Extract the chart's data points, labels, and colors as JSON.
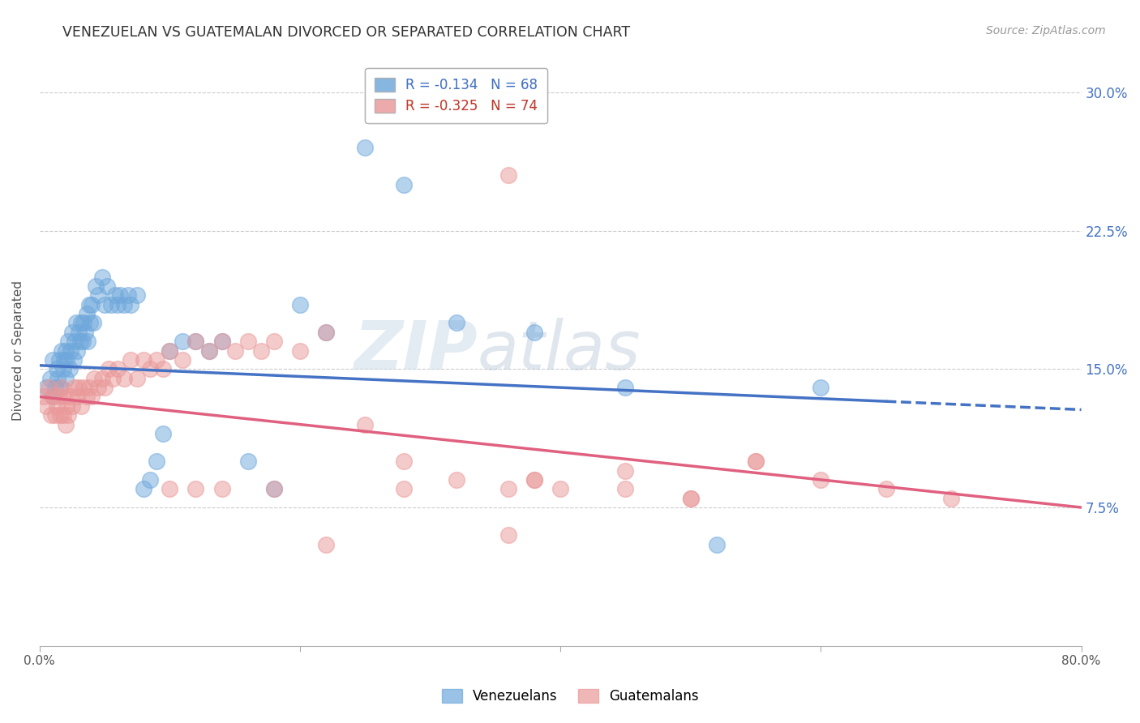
{
  "title": "VENEZUELAN VS GUATEMALAN DIVORCED OR SEPARATED CORRELATION CHART",
  "source": "Source: ZipAtlas.com",
  "ylabel": "Divorced or Separated",
  "xlabel_ticks": [
    "0.0%",
    "",
    "",
    "",
    "80.0%"
  ],
  "xlabel_vals": [
    0.0,
    0.2,
    0.4,
    0.6,
    0.8
  ],
  "ylabel_ticks": [
    "7.5%",
    "15.0%",
    "22.5%",
    "30.0%"
  ],
  "ylabel_vals": [
    0.075,
    0.15,
    0.225,
    0.3
  ],
  "xlim": [
    0.0,
    0.8
  ],
  "ylim": [
    0.0,
    0.32
  ],
  "venezuelan_color": "#6fa8dc",
  "guatemalan_color": "#ea9999",
  "ven_line_color": "#4472c4",
  "gua_line_color": "#e06080",
  "ven_line_solid_end": 0.65,
  "ven_line_x0": 0.0,
  "ven_line_x1": 0.8,
  "ven_line_y0": 0.152,
  "ven_line_y1": 0.128,
  "gua_line_x0": 0.0,
  "gua_line_x1": 0.8,
  "gua_line_y0": 0.135,
  "gua_line_y1": 0.075,
  "venezuelan_scatter_x": [
    0.005,
    0.008,
    0.01,
    0.01,
    0.012,
    0.013,
    0.014,
    0.015,
    0.016,
    0.017,
    0.018,
    0.019,
    0.02,
    0.02,
    0.021,
    0.022,
    0.023,
    0.024,
    0.025,
    0.026,
    0.027,
    0.028,
    0.029,
    0.03,
    0.031,
    0.032,
    0.033,
    0.034,
    0.035,
    0.036,
    0.037,
    0.038,
    0.039,
    0.04,
    0.041,
    0.043,
    0.045,
    0.048,
    0.05,
    0.052,
    0.055,
    0.058,
    0.06,
    0.062,
    0.065,
    0.068,
    0.07,
    0.075,
    0.08,
    0.085,
    0.09,
    0.095,
    0.1,
    0.11,
    0.12,
    0.13,
    0.14,
    0.16,
    0.18,
    0.2,
    0.22,
    0.25,
    0.28,
    0.32,
    0.38,
    0.45,
    0.52,
    0.6
  ],
  "venezuelan_scatter_y": [
    0.14,
    0.145,
    0.135,
    0.155,
    0.14,
    0.15,
    0.145,
    0.155,
    0.14,
    0.16,
    0.15,
    0.155,
    0.145,
    0.16,
    0.155,
    0.165,
    0.15,
    0.16,
    0.17,
    0.155,
    0.165,
    0.175,
    0.16,
    0.17,
    0.165,
    0.175,
    0.165,
    0.175,
    0.17,
    0.18,
    0.165,
    0.185,
    0.175,
    0.185,
    0.175,
    0.195,
    0.19,
    0.2,
    0.185,
    0.195,
    0.185,
    0.19,
    0.185,
    0.19,
    0.185,
    0.19,
    0.185,
    0.19,
    0.085,
    0.09,
    0.1,
    0.115,
    0.16,
    0.165,
    0.165,
    0.16,
    0.165,
    0.1,
    0.085,
    0.185,
    0.17,
    0.27,
    0.25,
    0.175,
    0.17,
    0.14,
    0.055,
    0.14
  ],
  "guatemalan_scatter_x": [
    0.003,
    0.005,
    0.007,
    0.009,
    0.01,
    0.012,
    0.013,
    0.015,
    0.016,
    0.017,
    0.018,
    0.019,
    0.02,
    0.021,
    0.022,
    0.023,
    0.025,
    0.027,
    0.029,
    0.03,
    0.032,
    0.034,
    0.036,
    0.038,
    0.04,
    0.042,
    0.045,
    0.048,
    0.05,
    0.053,
    0.056,
    0.06,
    0.065,
    0.07,
    0.075,
    0.08,
    0.085,
    0.09,
    0.095,
    0.1,
    0.11,
    0.12,
    0.13,
    0.14,
    0.15,
    0.16,
    0.17,
    0.18,
    0.2,
    0.22,
    0.25,
    0.28,
    0.32,
    0.36,
    0.38,
    0.4,
    0.45,
    0.5,
    0.55,
    0.6,
    0.65,
    0.7,
    0.36,
    0.22,
    0.5,
    0.36,
    0.28,
    0.38,
    0.45,
    0.55,
    0.18,
    0.14,
    0.12,
    0.1
  ],
  "guatemalan_scatter_y": [
    0.135,
    0.13,
    0.14,
    0.125,
    0.135,
    0.125,
    0.13,
    0.135,
    0.125,
    0.14,
    0.125,
    0.135,
    0.12,
    0.13,
    0.125,
    0.135,
    0.13,
    0.14,
    0.135,
    0.14,
    0.13,
    0.14,
    0.135,
    0.14,
    0.135,
    0.145,
    0.14,
    0.145,
    0.14,
    0.15,
    0.145,
    0.15,
    0.145,
    0.155,
    0.145,
    0.155,
    0.15,
    0.155,
    0.15,
    0.16,
    0.155,
    0.165,
    0.16,
    0.165,
    0.16,
    0.165,
    0.16,
    0.165,
    0.16,
    0.17,
    0.12,
    0.1,
    0.09,
    0.085,
    0.09,
    0.085,
    0.085,
    0.08,
    0.1,
    0.09,
    0.085,
    0.08,
    0.06,
    0.055,
    0.08,
    0.255,
    0.085,
    0.09,
    0.095,
    0.1,
    0.085,
    0.085,
    0.085,
    0.085
  ]
}
